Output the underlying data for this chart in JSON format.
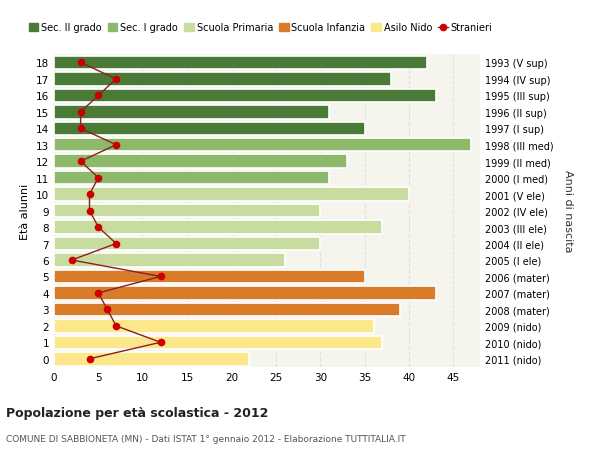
{
  "ages": [
    0,
    1,
    2,
    3,
    4,
    5,
    6,
    7,
    8,
    9,
    10,
    11,
    12,
    13,
    14,
    15,
    16,
    17,
    18
  ],
  "bar_values": [
    22,
    37,
    36,
    39,
    43,
    35,
    26,
    30,
    37,
    30,
    40,
    31,
    33,
    47,
    35,
    31,
    43,
    38,
    42
  ],
  "stranieri": [
    4,
    12,
    7,
    6,
    5,
    12,
    2,
    7,
    5,
    4,
    4,
    5,
    3,
    7,
    3,
    3,
    5,
    7,
    3
  ],
  "right_labels": [
    "2011 (nido)",
    "2010 (nido)",
    "2009 (nido)",
    "2008 (mater)",
    "2007 (mater)",
    "2006 (mater)",
    "2005 (I ele)",
    "2004 (II ele)",
    "2003 (III ele)",
    "2002 (IV ele)",
    "2001 (V ele)",
    "2000 (I med)",
    "1999 (II med)",
    "1998 (III med)",
    "1997 (I sup)",
    "1996 (II sup)",
    "1995 (III sup)",
    "1994 (IV sup)",
    "1993 (V sup)"
  ],
  "bar_colors": [
    "#fce88a",
    "#fce88a",
    "#fce88a",
    "#d97c2a",
    "#d97c2a",
    "#d97c2a",
    "#c8dca0",
    "#c8dca0",
    "#c8dca0",
    "#c8dca0",
    "#c8dca0",
    "#8dba6a",
    "#8dba6a",
    "#8dba6a",
    "#4a7a38",
    "#4a7a38",
    "#4a7a38",
    "#4a7a38",
    "#4a7a38"
  ],
  "legend_labels": [
    "Sec. II grado",
    "Sec. I grado",
    "Scuola Primaria",
    "Scuola Infanzia",
    "Asilo Nido",
    "Stranieri"
  ],
  "legend_colors": [
    "#4a7a38",
    "#8dba6a",
    "#c8dca0",
    "#d97c2a",
    "#fce88a",
    "#cc0000"
  ],
  "title": "Popolazione per età scolastica - 2012",
  "subtitle": "COMUNE DI SABBIONETA (MN) - Dati ISTAT 1° gennaio 2012 - Elaborazione TUTTITALIA.IT",
  "ylabel": "Età alunni",
  "right_ylabel": "Anni di nascita",
  "xlim": [
    0,
    48
  ],
  "ylim": [
    -0.5,
    18.5
  ],
  "bg_color": "#ffffff",
  "plot_bg_color": "#f5f5ee",
  "bar_edge_color": "white",
  "stranieri_color": "#cc0000",
  "stranieri_line_color": "#8b2020",
  "grid_color": "#e0e0e0"
}
